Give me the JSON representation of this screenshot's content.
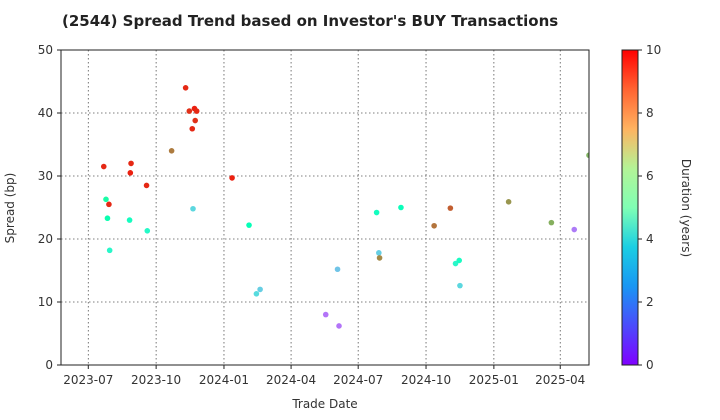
{
  "chart_data": {
    "type": "scatter",
    "title": "(2544)   Spread Trend based on Investor's BUY Transactions",
    "xlabel": "Trade Date",
    "ylabel": "Spread (bp)",
    "x_ticks": [
      "2023-07",
      "2023-10",
      "2024-01",
      "2024-04",
      "2024-07",
      "2024-10",
      "2025-01",
      "2025-04"
    ],
    "xlim": [
      "2023-05-25",
      "2025-05-10"
    ],
    "y_ticks": [
      "0",
      "10",
      "20",
      "30",
      "40",
      "50"
    ],
    "ylim": [
      0,
      50
    ],
    "grid": true,
    "colorbar": {
      "label": "Duration (years)",
      "ticks": [
        "0",
        "2",
        "4",
        "6",
        "8",
        "10"
      ],
      "range": [
        0,
        10
      ],
      "colormap": "rainbow"
    },
    "points": [
      {
        "date": "2023-07-22",
        "spread": 31.5,
        "duration": 9.5
      },
      {
        "date": "2023-07-25",
        "spread": 26.3,
        "duration": 5.5
      },
      {
        "date": "2023-07-27",
        "spread": 23.3,
        "duration": 5.2
      },
      {
        "date": "2023-07-29",
        "spread": 25.5,
        "duration": 9.5
      },
      {
        "date": "2023-07-30",
        "spread": 18.2,
        "duration": 4.2
      },
      {
        "date": "2023-08-26",
        "spread": 23.0,
        "duration": 4.6
      },
      {
        "date": "2023-08-27",
        "spread": 30.5,
        "duration": 9.6
      },
      {
        "date": "2023-08-28",
        "spread": 32.0,
        "duration": 9.5
      },
      {
        "date": "2023-09-18",
        "spread": 28.5,
        "duration": 9.5
      },
      {
        "date": "2023-09-19",
        "spread": 21.3,
        "duration": 4.3
      },
      {
        "date": "2023-10-22",
        "spread": 34.0,
        "duration": 8.4
      },
      {
        "date": "2023-11-10",
        "spread": 44.0,
        "duration": 9.5
      },
      {
        "date": "2023-11-15",
        "spread": 40.3,
        "duration": 9.4
      },
      {
        "date": "2023-11-19",
        "spread": 37.5,
        "duration": 9.5
      },
      {
        "date": "2023-11-20",
        "spread": 24.8,
        "duration": 3.2
      },
      {
        "date": "2023-11-22",
        "spread": 40.7,
        "duration": 9.6
      },
      {
        "date": "2023-11-23",
        "spread": 38.8,
        "duration": 9.4
      },
      {
        "date": "2023-11-25",
        "spread": 40.3,
        "duration": 9.5
      },
      {
        "date": "2024-01-12",
        "spread": 29.7,
        "duration": 9.6
      },
      {
        "date": "2024-02-04",
        "spread": 22.2,
        "duration": 4.9
      },
      {
        "date": "2024-02-14",
        "spread": 11.3,
        "duration": 3.3
      },
      {
        "date": "2024-02-19",
        "spread": 12.0,
        "duration": 3.0
      },
      {
        "date": "2024-05-18",
        "spread": 8.0,
        "duration": 1.5
      },
      {
        "date": "2024-06-03",
        "spread": 15.2,
        "duration": 2.8
      },
      {
        "date": "2024-06-05",
        "spread": 6.2,
        "duration": 1.5
      },
      {
        "date": "2024-07-26",
        "spread": 24.2,
        "duration": 4.6
      },
      {
        "date": "2024-07-29",
        "spread": 17.8,
        "duration": 3.0
      },
      {
        "date": "2024-07-30",
        "spread": 17.0,
        "duration": 8.2
      },
      {
        "date": "2024-08-28",
        "spread": 25.0,
        "duration": 4.8
      },
      {
        "date": "2024-10-12",
        "spread": 22.1,
        "duration": 8.5
      },
      {
        "date": "2024-11-03",
        "spread": 24.9,
        "duration": 8.8
      },
      {
        "date": "2024-11-10",
        "spread": 16.1,
        "duration": 4.2
      },
      {
        "date": "2024-11-15",
        "spread": 16.6,
        "duration": 4.5
      },
      {
        "date": "2024-11-16",
        "spread": 12.6,
        "duration": 3.2
      },
      {
        "date": "2025-01-21",
        "spread": 25.9,
        "duration": 8.0
      },
      {
        "date": "2025-03-20",
        "spread": 22.6,
        "duration": 7.6
      },
      {
        "date": "2025-04-20",
        "spread": 21.5,
        "duration": 1.6
      },
      {
        "date": "2025-05-10",
        "spread": 33.3,
        "duration": 7.5
      }
    ]
  }
}
